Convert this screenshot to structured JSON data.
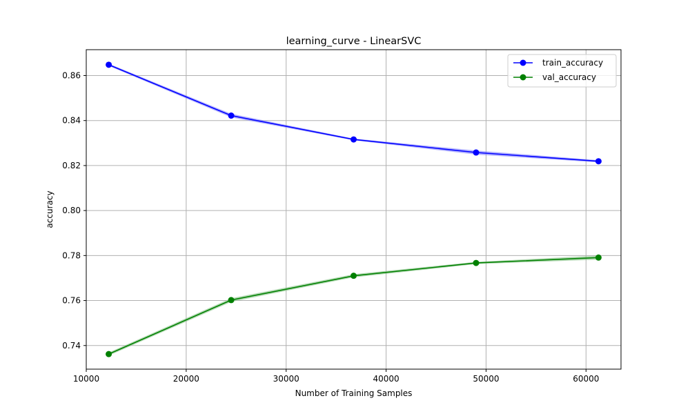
{
  "chart_data": {
    "type": "line",
    "title": "learning_curve - LinearSVC",
    "xlabel": "Number of Training Samples",
    "ylabel": "accuracy",
    "xlim": [
      10000,
      63500
    ],
    "ylim": [
      0.7295,
      0.8715
    ],
    "xticks": [
      10000,
      20000,
      30000,
      40000,
      50000,
      60000
    ],
    "yticks": [
      0.74,
      0.76,
      0.78,
      0.8,
      0.82,
      0.84,
      0.86
    ],
    "ytick_labels": [
      "0.74",
      "0.76",
      "0.78",
      "0.80",
      "0.82",
      "0.84",
      "0.86"
    ],
    "grid": true,
    "legend_position": "top-right",
    "x": [
      12250,
      24500,
      36750,
      49000,
      61250
    ],
    "series": [
      {
        "name": "train_accuracy",
        "color": "#0000ff",
        "band_color": "#8080ff",
        "values": [
          0.8648,
          0.8422,
          0.8316,
          0.8258,
          0.8219
        ],
        "lower": [
          0.8643,
          0.8414,
          0.8312,
          0.8249,
          0.8214
        ],
        "upper": [
          0.8653,
          0.843,
          0.832,
          0.8267,
          0.8224
        ]
      },
      {
        "name": "val_accuracy",
        "color": "#008000",
        "band_color": "#80c080",
        "values": [
          0.7362,
          0.7602,
          0.771,
          0.7767,
          0.7791
        ],
        "lower": [
          0.7355,
          0.7594,
          0.7703,
          0.7762,
          0.7782
        ],
        "upper": [
          0.7369,
          0.761,
          0.7717,
          0.7772,
          0.78
        ]
      }
    ]
  }
}
